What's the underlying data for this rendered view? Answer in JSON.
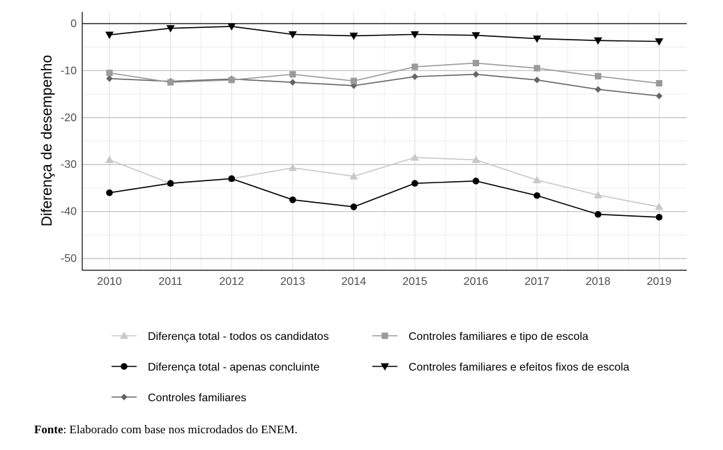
{
  "chart_data": {
    "type": "line",
    "x": [
      "2010",
      "2011",
      "2012",
      "2013",
      "2014",
      "2015",
      "2016",
      "2017",
      "2018",
      "2019"
    ],
    "ylabel": "Diferença de desempenho",
    "ylim": [
      -52.5,
      2.5
    ],
    "yticks": [
      0,
      -10,
      -20,
      -30,
      -40,
      -50
    ],
    "ytick_labels": [
      "0",
      "-10",
      "-20",
      "-30",
      "-40",
      "-50"
    ],
    "grid": true,
    "legend_position": "bottom",
    "series": [
      {
        "name": "Diferença total - todos os candidatos",
        "color": "#c8c8c8",
        "marker": "triangle-up",
        "values": [
          -29.0,
          -34.0,
          -33.0,
          -30.7,
          -32.5,
          -28.5,
          -29.0,
          -33.3,
          -36.5,
          -39.0
        ]
      },
      {
        "name": "Diferença total - apenas concluinte",
        "color": "#000000",
        "marker": "circle",
        "values": [
          -36.0,
          -34.0,
          -33.0,
          -37.5,
          -39.0,
          -34.0,
          -33.5,
          -36.6,
          -40.6,
          -41.2
        ]
      },
      {
        "name": "Controles familiares",
        "color": "#656565",
        "marker": "diamond",
        "values": [
          -11.7,
          -12.3,
          -11.8,
          -12.5,
          -13.2,
          -11.3,
          -10.8,
          -12.0,
          -14.0,
          -15.4
        ]
      },
      {
        "name": "Controles familiares e tipo de escola",
        "color": "#9a9a9a",
        "marker": "square",
        "values": [
          -10.5,
          -12.5,
          -12.0,
          -10.8,
          -12.2,
          -9.2,
          -8.4,
          -9.5,
          -11.2,
          -12.7
        ]
      },
      {
        "name": "Controles familiares e efeitos fixos de escola",
        "color": "#000000",
        "marker": "triangle-down",
        "values": [
          -2.4,
          -1.0,
          -0.6,
          -2.3,
          -2.6,
          -2.3,
          -2.5,
          -3.2,
          -3.6,
          -3.8
        ]
      }
    ]
  },
  "source": {
    "label": "Fonte",
    "text": ": Elaborado com base nos microdados do ENEM."
  }
}
